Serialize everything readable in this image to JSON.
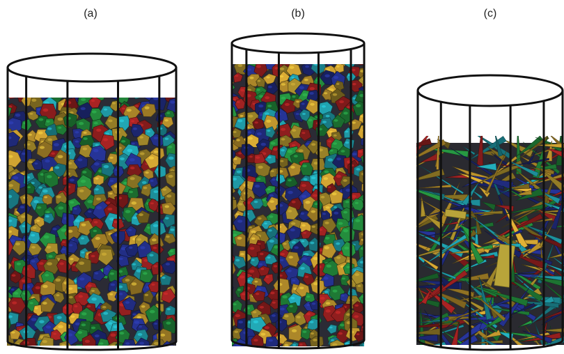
{
  "panels": [
    {
      "label": "(a)",
      "particle_shape": "rounded-polyhedra",
      "fill_level": "nearly-full"
    },
    {
      "label": "(b)",
      "particle_shape": "rounded-polyhedra",
      "fill_level": "nearly-full"
    },
    {
      "label": "(c)",
      "particle_shape": "elongated-plates-and-rods",
      "fill_level": "partial"
    }
  ],
  "particle_colors": [
    "#8a1d1d",
    "#1f2a7a",
    "#1f7a35",
    "#1c8a95",
    "#8a7424",
    "#b08a2a"
  ],
  "container_color": "#111111"
}
